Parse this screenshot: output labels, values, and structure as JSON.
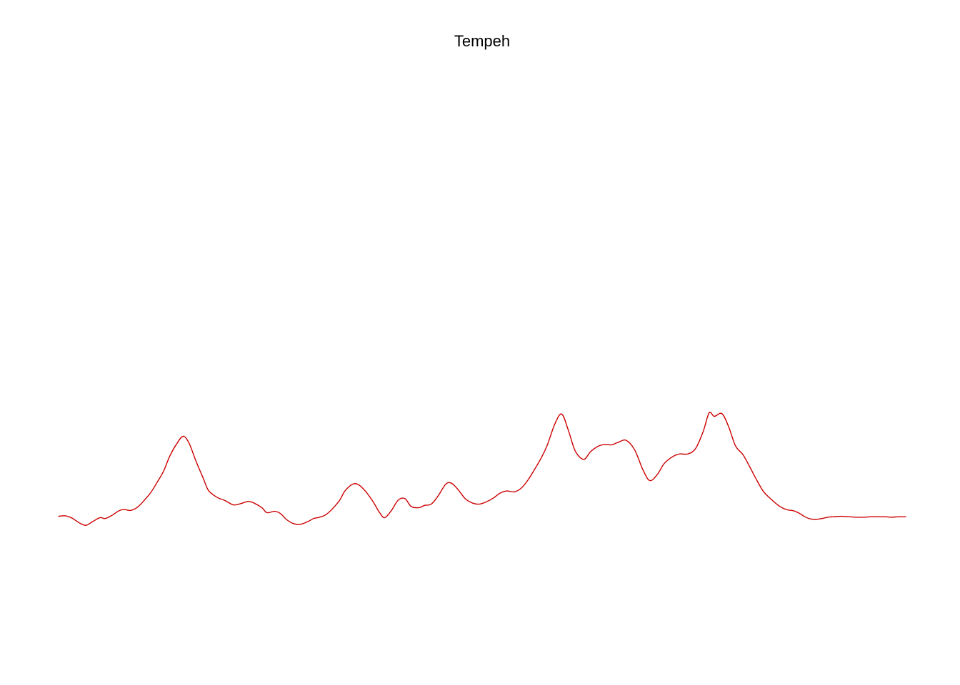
{
  "chart_data": {
    "type": "line",
    "title": "Tempeh",
    "xlabel": "",
    "ylabel": "",
    "axes_visible": false,
    "grid": false,
    "xlim": [
      0,
      100
    ],
    "ylim": [
      -0.1,
      1.0
    ],
    "series": [
      {
        "color": "#cc0000",
        "x": [
          0,
          0.8,
          1.6,
          2.4,
          3.2,
          4.0,
          4.9,
          5.5,
          6.3,
          7.1,
          7.7,
          8.5,
          9.3,
          10.1,
          10.9,
          11.6,
          12.4,
          13.1,
          13.9,
          14.7,
          15.4,
          16.2,
          17.1,
          17.7,
          18.7,
          19.5,
          20.2,
          20.7,
          21.5,
          22.4,
          23.1,
          24.0,
          24.6,
          25.5,
          26.2,
          26.9,
          27.7,
          28.5,
          29.4,
          30.1,
          30.8,
          31.5,
          32.3,
          33.2,
          33.8,
          34.7,
          35.4,
          36.2,
          37.1,
          37.9,
          38.5,
          39.3,
          40.1,
          40.9,
          41.6,
          42.5,
          43.2,
          44.0,
          44.8,
          45.7,
          46.4,
          47.2,
          48.0,
          48.9,
          49.7,
          50.5,
          51.3,
          52.1,
          52.9,
          53.8,
          54.6,
          55.4,
          56.2,
          57.0,
          57.7,
          58.6,
          59.4,
          60.2,
          61.0,
          62.0,
          62.8,
          63.7,
          64.5,
          65.3,
          66.1,
          67.0,
          68.0,
          69.0,
          69.8,
          70.7,
          71.5,
          72.5,
          73.3,
          74.3,
          75.2,
          76.1,
          76.8,
          77.4,
          78.3,
          79.1,
          79.9,
          80.8,
          81.6,
          82.3,
          83.2,
          84.1,
          84.9,
          85.5,
          86.1,
          86.8,
          87.5,
          88.0,
          88.6,
          89.3,
          90.1,
          90.8,
          91.5,
          92.4,
          93.3,
          94.2,
          95.0,
          95.9,
          96.7,
          97.6,
          98.3,
          99.2,
          100
        ],
        "y": [
          0.008,
          0.009,
          0.004,
          -0.006,
          -0.012,
          -0.004,
          0.005,
          0.003,
          0.01,
          0.02,
          0.023,
          0.021,
          0.028,
          0.043,
          0.061,
          0.082,
          0.108,
          0.14,
          0.167,
          0.185,
          0.17,
          0.131,
          0.091,
          0.065,
          0.05,
          0.044,
          0.037,
          0.033,
          0.036,
          0.041,
          0.037,
          0.027,
          0.016,
          0.019,
          0.014,
          0.001,
          -0.008,
          -0.01,
          -0.004,
          0.003,
          0.006,
          0.011,
          0.024,
          0.044,
          0.064,
          0.079,
          0.078,
          0.064,
          0.041,
          0.016,
          0.005,
          0.021,
          0.044,
          0.047,
          0.03,
          0.027,
          0.032,
          0.035,
          0.053,
          0.079,
          0.081,
          0.066,
          0.047,
          0.037,
          0.035,
          0.04,
          0.048,
          0.059,
          0.064,
          0.062,
          0.07,
          0.088,
          0.112,
          0.138,
          0.166,
          0.213,
          0.234,
          0.197,
          0.152,
          0.134,
          0.151,
          0.163,
          0.167,
          0.166,
          0.172,
          0.176,
          0.155,
          0.11,
          0.087,
          0.101,
          0.125,
          0.14,
          0.146,
          0.146,
          0.158,
          0.196,
          0.237,
          0.229,
          0.235,
          0.206,
          0.164,
          0.144,
          0.117,
          0.092,
          0.063,
          0.046,
          0.033,
          0.026,
          0.022,
          0.02,
          0.014,
          0.008,
          0.003,
          0.001,
          0.003,
          0.006,
          0.007,
          0.008,
          0.007,
          0.006,
          0.006,
          0.007,
          0.007,
          0.007,
          0.006,
          0.007,
          0.007
        ]
      }
    ]
  }
}
